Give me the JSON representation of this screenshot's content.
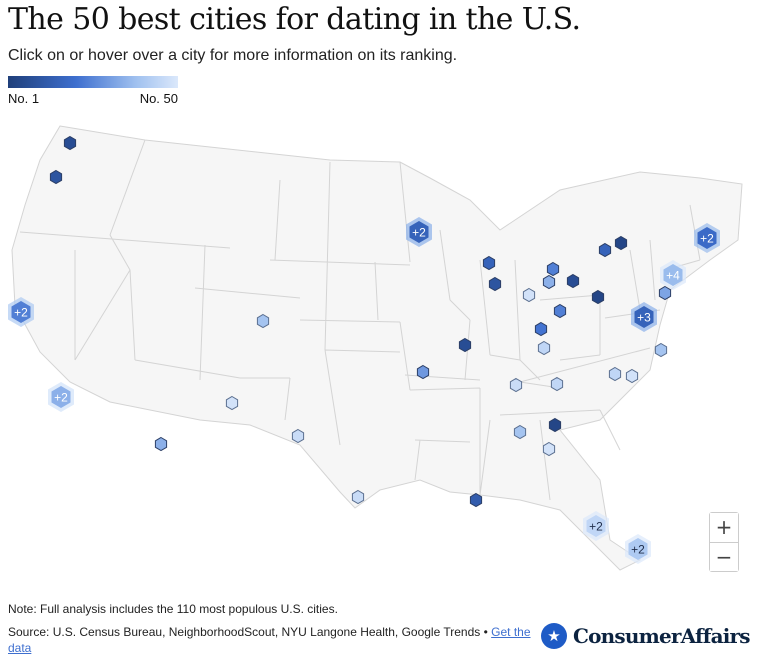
{
  "header": {
    "title": "The 50 best cities for dating in the U.S.",
    "subtitle": "Click on or hover over a city for more information on its ranking."
  },
  "legend": {
    "min_label": "No. 1",
    "max_label": "No. 50",
    "colors": [
      "#1f3f7a",
      "#3e6fcf",
      "#9fc0ef",
      "#dbe8fb"
    ]
  },
  "map": {
    "clusters": [
      {
        "label": "+2",
        "region": "Minnesota (Minneapolis)",
        "shade": 0.25
      },
      {
        "label": "+2",
        "region": "Northern California (Bay Area)",
        "shade": 0.4
      },
      {
        "label": "+2",
        "region": "Southern California",
        "shade": 0.6
      },
      {
        "label": "+2",
        "region": "Massachusetts (Boston)",
        "shade": 0.3
      },
      {
        "label": "+4",
        "region": "Southern New England / New York",
        "shade": 0.65
      },
      {
        "label": "+3",
        "region": "Mid-Atlantic (Philadelphia / Baltimore / D.C.)",
        "shade": 0.25
      },
      {
        "label": "+2",
        "region": "Central Florida",
        "shade": 0.85
      },
      {
        "label": "+2",
        "region": "South Florida",
        "shade": 0.75
      }
    ],
    "cities": [
      {
        "region": "Seattle, WA",
        "shade": 0.1
      },
      {
        "region": "Portland, OR",
        "shade": 0.15
      },
      {
        "region": "Denver, CO",
        "shade": 0.7
      },
      {
        "region": "Albuquerque, NM",
        "shade": 0.95
      },
      {
        "region": "Phoenix/Tucson, AZ",
        "shade": 0.6
      },
      {
        "region": "Lubbock, TX",
        "shade": 0.9
      },
      {
        "region": "Austin/San Antonio, TX",
        "shade": 0.9
      },
      {
        "region": "Kansas City, MO",
        "shade": 0.5
      },
      {
        "region": "St. Louis, MO",
        "shade": 0.1
      },
      {
        "region": "New Orleans, LA",
        "shade": 0.2
      },
      {
        "region": "Madison, WI",
        "shade": 0.25
      },
      {
        "region": "Chicago, IL",
        "shade": 0.15
      },
      {
        "region": "Grand Rapids, MI",
        "shade": 0.4
      },
      {
        "region": "Fort Wayne, IN",
        "shade": 0.6
      },
      {
        "region": "Indianapolis, IN",
        "shade": 0.95
      },
      {
        "region": "Columbus, OH",
        "shade": 0.4
      },
      {
        "region": "Cleveland, OH",
        "shade": 0.1
      },
      {
        "region": "Buffalo, NY",
        "shade": 0.25
      },
      {
        "region": "Rochester, NY",
        "shade": 0.05
      },
      {
        "region": "Pittsburgh, PA",
        "shade": 0.05
      },
      {
        "region": "Cincinnati, OH",
        "shade": 0.35
      },
      {
        "region": "Louisville, KY",
        "shade": 0.85
      },
      {
        "region": "Nashville, TN",
        "shade": 0.9
      },
      {
        "region": "Knoxville, TN",
        "shade": 0.85
      },
      {
        "region": "Birmingham, AL",
        "shade": 0.7
      },
      {
        "region": "Atlanta, GA",
        "shade": 0.05
      },
      {
        "region": "Columbus, GA",
        "shade": 0.95
      },
      {
        "region": "Greensboro, NC",
        "shade": 0.85
      },
      {
        "region": "Raleigh, NC",
        "shade": 0.95
      },
      {
        "region": "Richmond, VA",
        "shade": 0.7
      },
      {
        "region": "New York, NY",
        "shade": 0.55
      }
    ]
  },
  "zoom": {
    "zoom_in": "+",
    "zoom_out": "−"
  },
  "footer": {
    "note": "Note: Full analysis includes the 110 most populous U.S. cities.",
    "source": "Source: U.S. Census Bureau, NeighborhoodScout, NYU Langone Health, Google Trends • ",
    "data_link": "Get the data",
    "brand_star": "★",
    "brand": "ConsumerAffairs"
  }
}
